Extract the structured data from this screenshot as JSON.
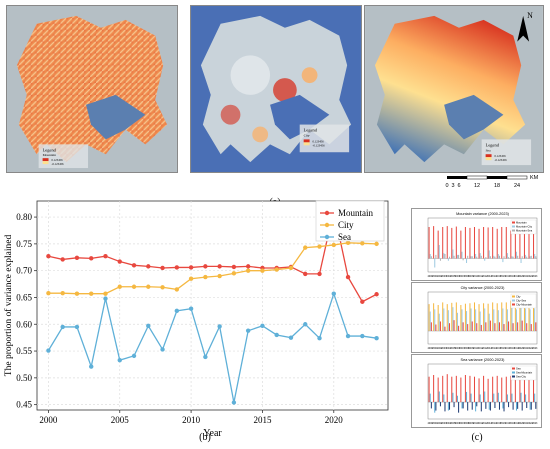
{
  "panel_labels": {
    "a": "(a)",
    "b": "(b)",
    "c": "(c)"
  },
  "maps": {
    "map1": {
      "legend_title": "Legend",
      "legend_sub": "Mountain",
      "legend_high": "0.123456",
      "legend_low": "-0.123456",
      "ramp_colors": [
        "#d7301f",
        "#fdae61",
        "#fee090"
      ]
    },
    "map2": {
      "legend_title": "Legend",
      "legend_sub": "City",
      "legend_high": "0.123456",
      "legend_low": "-0.123456",
      "ramp_colors": [
        "#d7301f",
        "#fee090",
        "#e8ecef"
      ]
    },
    "map3": {
      "legend_title": "Legend",
      "legend_sub": "Sea",
      "legend_high": "0.123456",
      "legend_low": "-0.123456",
      "ramp_colors": [
        "#d7301f",
        "#fee090",
        "#4575b4"
      ]
    },
    "north_label": "N",
    "scale_ticks": [
      "0",
      "3",
      "6",
      "12",
      "18",
      "24"
    ],
    "scale_unit": "KM"
  },
  "chart_data": [
    {
      "type": "line",
      "title": "",
      "xlabel": "Year",
      "ylabel": "The proportion of variance explained",
      "xlim": [
        1999.2,
        2023.8
      ],
      "ylim": [
        0.44,
        0.83
      ],
      "xticks": [
        2000,
        2005,
        2010,
        2015,
        2020
      ],
      "yticks": [
        0.45,
        0.5,
        0.55,
        0.6,
        0.65,
        0.7,
        0.75,
        0.8
      ],
      "grid": true,
      "legend_position": "top-right",
      "x": [
        2000,
        2001,
        2002,
        2003,
        2004,
        2005,
        2006,
        2007,
        2008,
        2009,
        2010,
        2011,
        2012,
        2013,
        2014,
        2015,
        2016,
        2017,
        2018,
        2019,
        2020,
        2021,
        2022,
        2023
      ],
      "series": [
        {
          "name": "Mountain",
          "color": "#e8483f",
          "values": [
            0.727,
            0.721,
            0.724,
            0.723,
            0.727,
            0.717,
            0.71,
            0.708,
            0.705,
            0.706,
            0.706,
            0.708,
            0.708,
            0.707,
            0.708,
            0.705,
            0.705,
            0.707,
            0.694,
            0.694,
            0.813,
            0.688,
            0.642,
            0.656
          ]
        },
        {
          "name": "City",
          "color": "#f5b841",
          "values": [
            0.658,
            0.658,
            0.657,
            0.657,
            0.657,
            0.67,
            0.67,
            0.67,
            0.669,
            0.665,
            0.685,
            0.688,
            0.69,
            0.695,
            0.7,
            0.7,
            0.702,
            0.705,
            0.743,
            0.745,
            0.748,
            0.752,
            0.751,
            0.75
          ]
        },
        {
          "name": "Sea",
          "color": "#5fb0d8",
          "values": [
            0.551,
            0.595,
            0.595,
            0.521,
            0.648,
            0.533,
            0.541,
            0.597,
            0.553,
            0.625,
            0.629,
            0.539,
            0.596,
            0.454,
            0.588,
            0.597,
            0.58,
            0.575,
            0.6,
            0.574,
            0.657,
            0.578,
            0.578,
            0.574
          ]
        }
      ]
    },
    {
      "type": "bar",
      "title": "Mountain variance (2000-2023)",
      "x": [
        2000,
        2001,
        2002,
        2003,
        2004,
        2005,
        2006,
        2007,
        2008,
        2009,
        2010,
        2011,
        2012,
        2013,
        2014,
        2015,
        2016,
        2017,
        2018,
        2019,
        2020,
        2021,
        2022,
        2023
      ],
      "ylim": [
        -0.3,
        0.9
      ],
      "series": [
        {
          "name": "Mountain",
          "color": "#e8483f",
          "values": [
            0.7,
            0.72,
            0.62,
            0.7,
            0.72,
            0.68,
            0.71,
            0.62,
            0.7,
            0.68,
            0.7,
            0.66,
            0.7,
            0.69,
            0.7,
            0.66,
            0.7,
            0.7,
            0.62,
            0.69,
            0.8,
            0.66,
            0.6,
            0.66
          ]
        },
        {
          "name": "Mountain-City",
          "color": "#9ecae1",
          "values": [
            0.1,
            -0.2,
            0.3,
            0.12,
            -0.05,
            0.2,
            0.08,
            0.15,
            -0.1,
            0.05,
            0.1,
            0.12,
            -0.05,
            0.18,
            0.06,
            0.1,
            -0.08,
            0.12,
            0.05,
            0.15,
            -0.1,
            0.08,
            0.05,
            0.1
          ]
        },
        {
          "name": "Mountain-Sea",
          "color": "#b0b0b0",
          "values": [
            0.05,
            0.08,
            -0.05,
            0.1,
            0.04,
            0.06,
            0.08,
            -0.04,
            0.06,
            0.05,
            0.04,
            0.06,
            0.03,
            0.05,
            0.04,
            0.06,
            0.05,
            0.03,
            0.04,
            0.06,
            0.05,
            0.04,
            0.06,
            0.05
          ]
        }
      ]
    },
    {
      "type": "bar",
      "title": "City variance (2000-2023)",
      "x": [
        2000,
        2001,
        2002,
        2003,
        2004,
        2005,
        2006,
        2007,
        2008,
        2009,
        2010,
        2011,
        2012,
        2013,
        2014,
        2015,
        2016,
        2017,
        2018,
        2019,
        2020,
        2021,
        2022,
        2023
      ],
      "ylim": [
        -0.3,
        0.9
      ],
      "series": [
        {
          "name": "City",
          "color": "#f5b841",
          "values": [
            0.62,
            0.64,
            0.6,
            0.66,
            0.62,
            0.65,
            0.66,
            0.6,
            0.63,
            0.64,
            0.66,
            0.62,
            0.64,
            0.63,
            0.66,
            0.64,
            0.66,
            0.66,
            0.7,
            0.72,
            0.7,
            0.72,
            0.7,
            0.72
          ]
        },
        {
          "name": "City-Sea",
          "color": "#9ecae1",
          "values": [
            0.45,
            0.5,
            0.4,
            0.52,
            0.48,
            0.55,
            0.42,
            0.5,
            0.46,
            0.52,
            0.5,
            0.45,
            0.52,
            0.4,
            0.5,
            0.48,
            0.52,
            0.5,
            0.55,
            0.5,
            0.58,
            0.52,
            0.5,
            0.52
          ]
        },
        {
          "name": "City-Mountain",
          "color": "#e8483f",
          "values": [
            0.2,
            0.15,
            0.22,
            0.1,
            0.18,
            0.25,
            0.12,
            0.2,
            0.16,
            0.22,
            0.18,
            0.14,
            0.2,
            0.24,
            0.18,
            0.2,
            0.16,
            0.22,
            0.18,
            0.2,
            0.24,
            0.18,
            0.16,
            0.2
          ]
        }
      ]
    },
    {
      "type": "bar",
      "title": "Sea variance (2000-2023)",
      "x": [
        2000,
        2001,
        2002,
        2003,
        2004,
        2005,
        2006,
        2007,
        2008,
        2009,
        2010,
        2011,
        2012,
        2013,
        2014,
        2015,
        2016,
        2017,
        2018,
        2019,
        2020,
        2021,
        2022,
        2023
      ],
      "ylim": [
        -0.4,
        0.9
      ],
      "series": [
        {
          "name": "Sea",
          "color": "#e8483f",
          "values": [
            0.6,
            0.64,
            0.58,
            0.62,
            0.66,
            0.6,
            0.62,
            0.58,
            0.64,
            0.62,
            0.6,
            0.56,
            0.62,
            0.55,
            0.6,
            0.62,
            0.58,
            0.6,
            0.62,
            0.58,
            0.68,
            0.6,
            0.58,
            0.6
          ]
        },
        {
          "name": "Sea-Mountain",
          "color": "#5fb0d8",
          "values": [
            0.2,
            -0.25,
            0.25,
            0.18,
            -0.2,
            0.22,
            0.15,
            -0.15,
            0.24,
            0.2,
            -0.22,
            0.18,
            0.25,
            -0.18,
            0.2,
            0.22,
            -0.15,
            0.18,
            0.2,
            -0.2,
            0.22,
            0.18,
            -0.18,
            0.2
          ]
        },
        {
          "name": "Sea-City",
          "color": "#1f3b73",
          "values": [
            -0.15,
            -0.2,
            -0.1,
            -0.22,
            -0.18,
            -0.12,
            -0.25,
            -0.15,
            -0.2,
            -0.18,
            -0.1,
            -0.22,
            -0.16,
            -0.2,
            -0.14,
            -0.18,
            -0.22,
            -0.12,
            -0.18,
            -0.16,
            -0.2,
            -0.14,
            -0.18,
            -0.16
          ]
        }
      ]
    }
  ]
}
